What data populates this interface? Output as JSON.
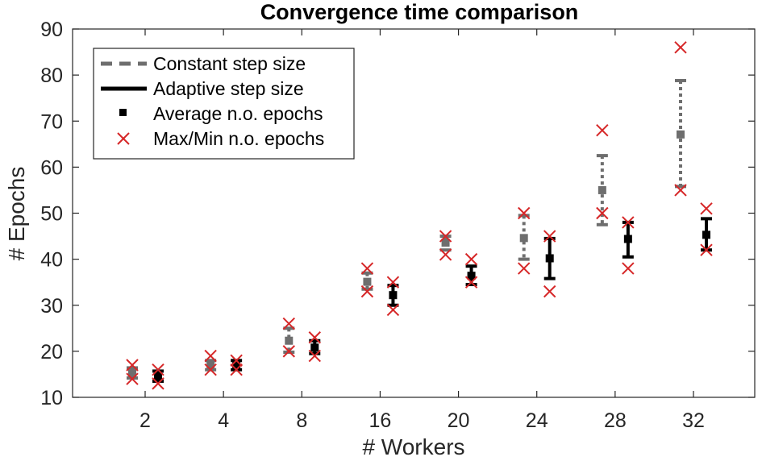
{
  "chart_data": {
    "type": "scatter",
    "title": "Convergence time comparison",
    "xlabel": "# Workers",
    "ylabel": "# Epochs",
    "categories": [
      "2",
      "4",
      "8",
      "16",
      "20",
      "24",
      "28",
      "32"
    ],
    "ylim": [
      10,
      90
    ],
    "yticks": [
      10,
      20,
      30,
      40,
      50,
      60,
      70,
      80,
      90
    ],
    "grid": false,
    "legend_position": "top-left",
    "legend": [
      {
        "label": "Constant step size",
        "style": "dashed-line"
      },
      {
        "label": "Adaptive step size",
        "style": "solid-line"
      },
      {
        "label": "Average n.o. epochs",
        "style": "square-marker"
      },
      {
        "label": "Max/Min n.o. epochs",
        "style": "x-marker"
      }
    ],
    "series": [
      {
        "name": "Constant step size",
        "color": "#6e6e6e",
        "mean": [
          15.2,
          17.0,
          22.3,
          35.1,
          43.6,
          44.6,
          55.0,
          67.1
        ],
        "err_low": [
          14.2,
          16.0,
          19.8,
          33.5,
          42.0,
          40.0,
          47.5,
          55.8
        ],
        "err_high": [
          16.4,
          18.0,
          25.0,
          37.0,
          45.0,
          49.5,
          62.5,
          78.8
        ],
        "min": [
          14.0,
          16.0,
          20.0,
          33.0,
          41.0,
          38.0,
          50.0,
          55.0
        ],
        "max": [
          17.0,
          19.0,
          26.0,
          38.0,
          45.0,
          50.0,
          68.0,
          86.0
        ]
      },
      {
        "name": "Adaptive step size",
        "color": "#000000",
        "mean": [
          14.5,
          17.0,
          20.8,
          32.2,
          36.4,
          40.2,
          44.4,
          45.3
        ],
        "err_low": [
          13.5,
          16.0,
          19.5,
          30.0,
          34.5,
          35.8,
          40.5,
          42.0
        ],
        "err_high": [
          15.7,
          18.0,
          22.3,
          34.3,
          38.5,
          44.5,
          48.0,
          48.8
        ],
        "min": [
          13.0,
          16.0,
          19.0,
          29.0,
          35.0,
          33.0,
          38.0,
          42.0
        ],
        "max": [
          16.0,
          18.0,
          23.0,
          35.0,
          40.0,
          45.0,
          48.0,
          51.0
        ]
      }
    ],
    "marker_color": "#d62728"
  }
}
